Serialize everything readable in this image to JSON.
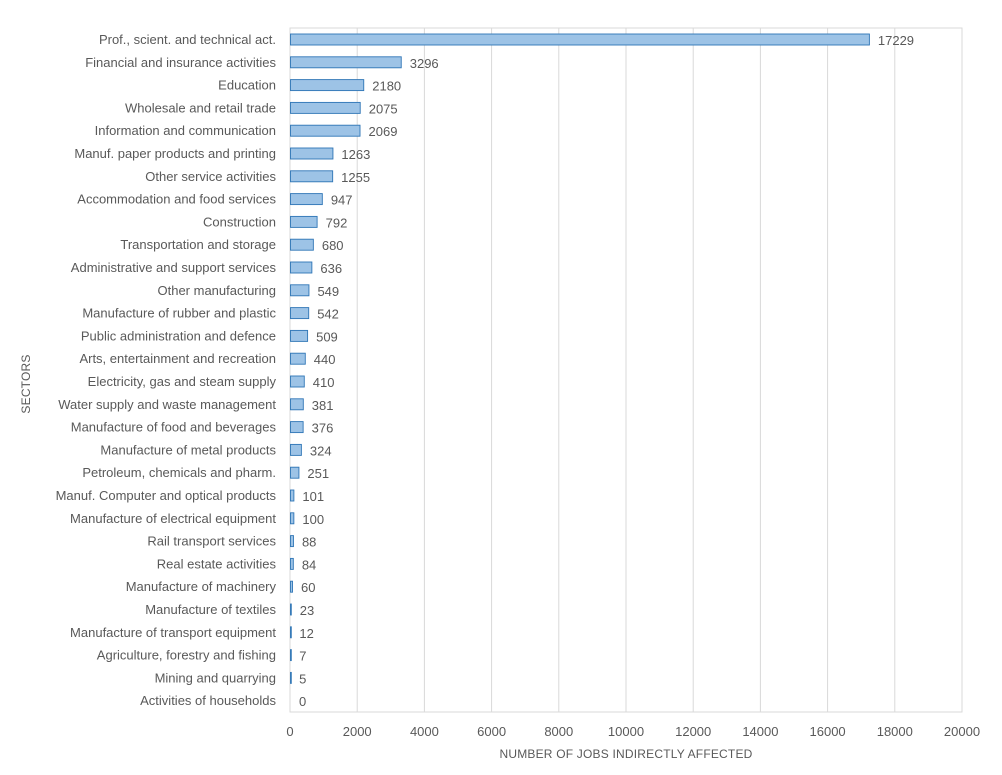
{
  "chart_data": {
    "type": "bar",
    "orientation": "horizontal",
    "xlabel": "NUMBER OF JOBS INDIRECTLY AFFECTED",
    "ylabel": "SECTORS",
    "xlim": [
      0,
      20000
    ],
    "xticks": [
      0,
      2000,
      4000,
      6000,
      8000,
      10000,
      12000,
      14000,
      16000,
      18000,
      20000
    ],
    "grid": true,
    "legend": "none",
    "bar_fill_color": "#9dc3e6",
    "bar_edge_color": "#2e75b6",
    "categories": [
      "Prof., scient. and technical act.",
      "Financial and insurance activities",
      "Education",
      "Wholesale and retail trade",
      "Information and communication",
      "Manuf. paper products and printing",
      "Other service activities",
      "Accommodation and food services",
      "Construction",
      "Transportation and storage",
      "Administrative and support services",
      "Other manufacturing",
      "Manufacture of rubber and plastic",
      "Public administration and defence",
      "Arts, entertainment and recreation",
      "Electricity, gas and steam supply",
      "Water supply and waste management",
      "Manufacture of food and beverages",
      "Manufacture of metal products",
      "Petroleum, chemicals and pharm.",
      "Manuf. Computer and optical products",
      "Manufacture of electrical equipment",
      "Rail transport services",
      "Real estate activities",
      "Manufacture of machinery",
      "Manufacture of textiles",
      "Manufacture of transport equipment",
      "Agriculture, forestry and fishing",
      "Mining and quarrying",
      "Activities of households"
    ],
    "values": [
      17229,
      3296,
      2180,
      2075,
      2069,
      1263,
      1255,
      947,
      792,
      680,
      636,
      549,
      542,
      509,
      440,
      410,
      381,
      376,
      324,
      251,
      101,
      100,
      88,
      84,
      60,
      23,
      12,
      7,
      5,
      0
    ]
  }
}
